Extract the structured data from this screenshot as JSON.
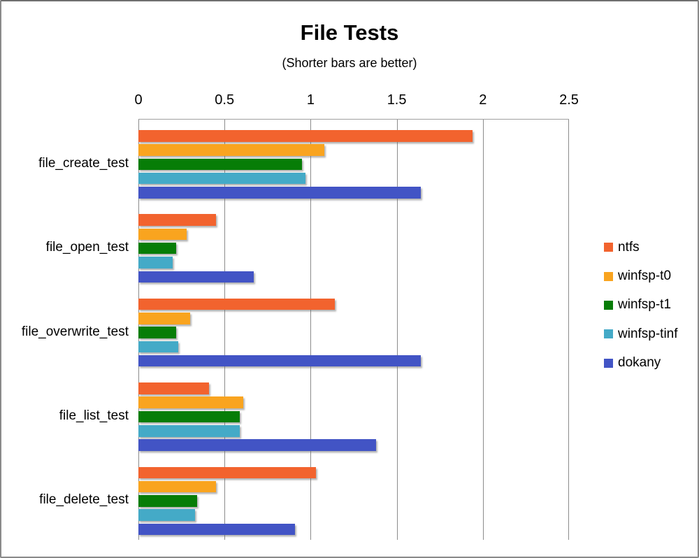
{
  "window": {
    "background": "#ffffff",
    "frame_border_color": "#8a8a8a"
  },
  "colors": {
    "gridline": "#8c8c8c",
    "plot_border": "#a0a0a0",
    "text": "#000000"
  },
  "chart_data": {
    "type": "bar",
    "orientation": "horizontal",
    "title": "File Tests",
    "subtitle": "(Shorter bars are better)",
    "categories": [
      "file_create_test",
      "file_open_test",
      "file_overwrite_test",
      "file_list_test",
      "file_delete_test"
    ],
    "series": [
      {
        "name": "ntfs",
        "color": "#F2632E",
        "values": [
          1.94,
          0.45,
          1.14,
          0.41,
          1.03
        ]
      },
      {
        "name": "winfsp-t0",
        "color": "#F9A41F",
        "values": [
          1.08,
          0.28,
          0.3,
          0.61,
          0.45
        ]
      },
      {
        "name": "winfsp-t1",
        "color": "#077D07",
        "values": [
          0.95,
          0.22,
          0.22,
          0.59,
          0.34
        ]
      },
      {
        "name": "winfsp-tinf",
        "color": "#44AAC7",
        "values": [
          0.97,
          0.2,
          0.23,
          0.59,
          0.33
        ]
      },
      {
        "name": "dokany",
        "color": "#4254C5",
        "values": [
          1.64,
          0.67,
          1.64,
          1.38,
          0.91
        ]
      }
    ],
    "x_axis": {
      "min": 0,
      "max": 2.5,
      "tick_interval": 0.5,
      "tick_labels": [
        "0",
        "0.5",
        "1",
        "1.5",
        "2",
        "2.5"
      ]
    },
    "grid": true,
    "legend_position": "right",
    "legend_entries": [
      "ntfs",
      "winfsp-t0",
      "winfsp-t1",
      "winfsp-tinf",
      "dokany"
    ]
  }
}
